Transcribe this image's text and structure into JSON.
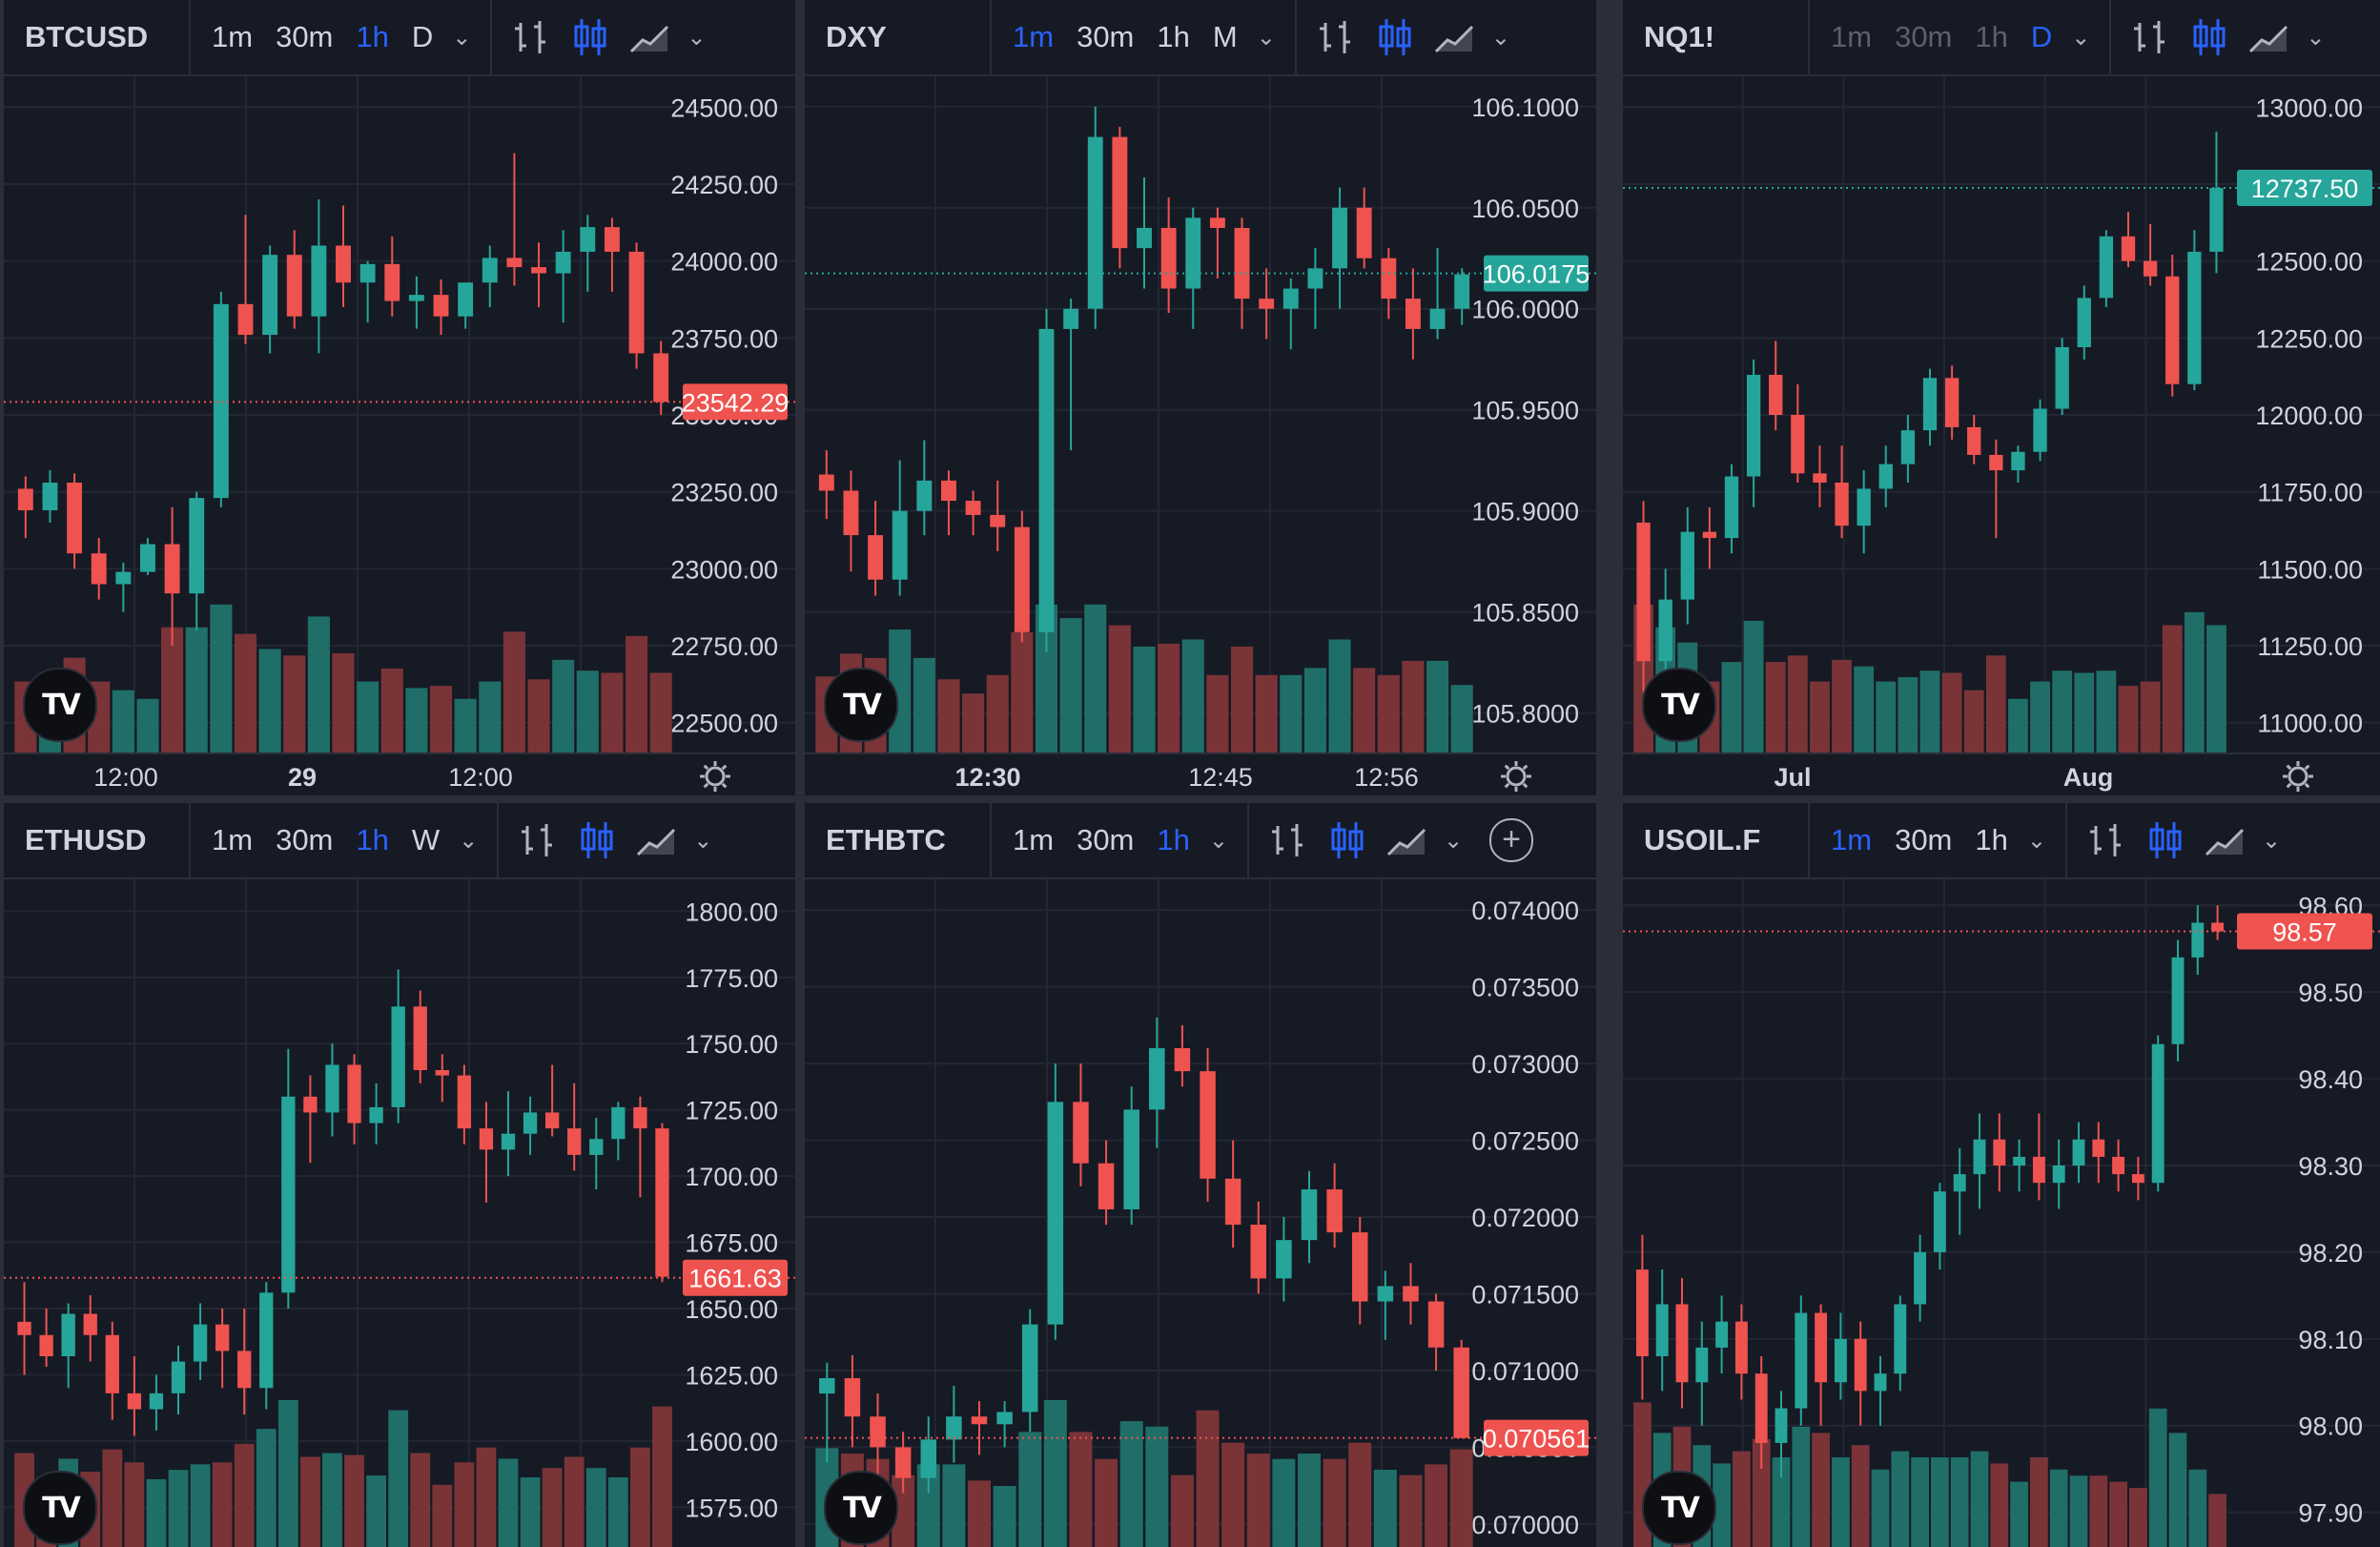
{
  "colors": {
    "up": "#26a69a",
    "down": "#ef5350",
    "upVol": "#1f6f68",
    "downVol": "#7a3437",
    "grid": "#232733",
    "text": "#d1d4dc",
    "accent": "#2962ff",
    "bg": "#161a25"
  },
  "panels": [
    {
      "symbol": "BTCUSD",
      "timeframes": [
        {
          "label": "1m",
          "state": "normal"
        },
        {
          "label": "30m",
          "state": "normal"
        },
        {
          "label": "1h",
          "state": "active"
        },
        {
          "label": "D",
          "state": "normal"
        }
      ],
      "price_labels": [
        "24500.00",
        "24250.00",
        "24000.00",
        "23750.00",
        "23500.00",
        "23250.00",
        "23000.00",
        "22750.00",
        "22500.00"
      ],
      "time_labels": [
        "12:00",
        "29",
        "12:00"
      ],
      "last_price": "23542.29",
      "last_dir": "down"
    },
    {
      "symbol": "DXY",
      "timeframes": [
        {
          "label": "1m",
          "state": "active"
        },
        {
          "label": "30m",
          "state": "normal"
        },
        {
          "label": "1h",
          "state": "normal"
        },
        {
          "label": "M",
          "state": "normal"
        }
      ],
      "price_labels": [
        "106.1000",
        "106.0500",
        "106.0000",
        "105.9500",
        "105.9000",
        "105.8500",
        "105.8000"
      ],
      "time_labels": [
        "12:30",
        "12:45",
        "12:56"
      ],
      "last_price": "106.0175",
      "last_dir": "up"
    },
    {
      "symbol": "NQ1!",
      "timeframes": [
        {
          "label": "1m",
          "state": "dim"
        },
        {
          "label": "30m",
          "state": "dim"
        },
        {
          "label": "1h",
          "state": "dim"
        },
        {
          "label": "D",
          "state": "active"
        }
      ],
      "price_labels": [
        "13000.00",
        "12750.00",
        "12500.00",
        "12250.00",
        "12000.00",
        "11750.00",
        "11500.00",
        "11250.00",
        "11000.00"
      ],
      "time_labels": [
        "Jul",
        "Aug"
      ],
      "last_price": "12737.50",
      "last_dir": "up"
    },
    {
      "symbol": "ETHUSD",
      "timeframes": [
        {
          "label": "1m",
          "state": "normal"
        },
        {
          "label": "30m",
          "state": "normal"
        },
        {
          "label": "1h",
          "state": "active"
        },
        {
          "label": "W",
          "state": "normal"
        }
      ],
      "price_labels": [
        "1800.00",
        "1775.00",
        "1750.00",
        "1725.00",
        "1700.00",
        "1675.00",
        "1650.00",
        "1625.00",
        "1600.00",
        "1575.00"
      ],
      "time_labels": [],
      "last_price": "1661.63",
      "last_dir": "down"
    },
    {
      "symbol": "ETHBTC",
      "timeframes": [
        {
          "label": "1m",
          "state": "normal"
        },
        {
          "label": "30m",
          "state": "normal"
        },
        {
          "label": "1h",
          "state": "active"
        }
      ],
      "price_labels": [
        "0.074000",
        "0.073500",
        "0.073000",
        "0.072500",
        "0.072000",
        "0.071500",
        "0.071000",
        "0.070500",
        "0.070000"
      ],
      "time_labels": [],
      "last_price": "0.070561",
      "last_dir": "down"
    },
    {
      "symbol": "USOIL.F",
      "timeframes": [
        {
          "label": "1m",
          "state": "active"
        },
        {
          "label": "30m",
          "state": "normal"
        },
        {
          "label": "1h",
          "state": "normal"
        }
      ],
      "price_labels": [
        "98.60",
        "98.50",
        "98.40",
        "98.30",
        "98.20",
        "98.10",
        "98.00",
        "97.90"
      ],
      "time_labels": [],
      "last_price": "98.57",
      "last_dir": "down"
    }
  ],
  "series": {
    "BTCUSD": [
      [
        23260,
        23300,
        23100,
        23190
      ],
      [
        23190,
        23320,
        23150,
        23280
      ],
      [
        23280,
        23310,
        23000,
        23050
      ],
      [
        23050,
        23100,
        22900,
        22950
      ],
      [
        22950,
        23020,
        22860,
        22990
      ],
      [
        22990,
        23100,
        22980,
        23080
      ],
      [
        23080,
        23200,
        22750,
        22920
      ],
      [
        22920,
        23250,
        22800,
        23230
      ],
      [
        23230,
        23900,
        23200,
        23860
      ],
      [
        23860,
        24150,
        23730,
        23760
      ],
      [
        23760,
        24050,
        23700,
        24020
      ],
      [
        24020,
        24100,
        23780,
        23820
      ],
      [
        23820,
        24200,
        23700,
        24050
      ],
      [
        24050,
        24180,
        23850,
        23930
      ],
      [
        23930,
        24000,
        23800,
        23990
      ],
      [
        23990,
        24080,
        23820,
        23870
      ],
      [
        23870,
        23950,
        23780,
        23890
      ],
      [
        23890,
        23940,
        23760,
        23820
      ],
      [
        23820,
        23900,
        23780,
        23930
      ],
      [
        23930,
        24050,
        23850,
        24010
      ],
      [
        24010,
        24350,
        23920,
        23980
      ],
      [
        23980,
        24060,
        23850,
        23960
      ],
      [
        23960,
        24100,
        23800,
        24030
      ],
      [
        24030,
        24150,
        23900,
        24110
      ],
      [
        24110,
        24140,
        23900,
        24030
      ],
      [
        24030,
        24060,
        23650,
        23700
      ],
      [
        23700,
        23740,
        23500,
        23542
      ]
    ],
    "DXY": [
      [
        105.918,
        105.93,
        105.896,
        105.91
      ],
      [
        105.91,
        105.92,
        105.87,
        105.888
      ],
      [
        105.888,
        105.905,
        105.858,
        105.866
      ],
      [
        105.866,
        105.925,
        105.858,
        105.9
      ],
      [
        105.9,
        105.935,
        105.888,
        105.915
      ],
      [
        105.915,
        105.92,
        105.888,
        105.905
      ],
      [
        105.905,
        105.91,
        105.888,
        105.898
      ],
      [
        105.898,
        105.915,
        105.88,
        105.892
      ],
      [
        105.892,
        105.9,
        105.835,
        105.84
      ],
      [
        105.84,
        106.0,
        105.83,
        105.99
      ],
      [
        105.99,
        106.005,
        105.93,
        106.0
      ],
      [
        106.0,
        106.1,
        105.99,
        106.085
      ],
      [
        106.085,
        106.09,
        106.02,
        106.03
      ],
      [
        106.03,
        106.065,
        106.01,
        106.04
      ],
      [
        106.04,
        106.055,
        105.998,
        106.01
      ],
      [
        106.01,
        106.05,
        105.99,
        106.045
      ],
      [
        106.045,
        106.05,
        106.015,
        106.04
      ],
      [
        106.04,
        106.045,
        105.99,
        106.005
      ],
      [
        106.005,
        106.02,
        105.985,
        106.0
      ],
      [
        106.0,
        106.015,
        105.98,
        106.01
      ],
      [
        106.01,
        106.03,
        105.99,
        106.02
      ],
      [
        106.02,
        106.06,
        106.0,
        106.05
      ],
      [
        106.05,
        106.06,
        106.02,
        106.025
      ],
      [
        106.025,
        106.03,
        105.995,
        106.005
      ],
      [
        106.005,
        106.02,
        105.975,
        105.99
      ],
      [
        105.99,
        106.03,
        105.985,
        106.0
      ],
      [
        106.0,
        106.02,
        105.992,
        106.017
      ]
    ],
    "NQ1!": [
      [
        11650,
        11720,
        11100,
        11200
      ],
      [
        11200,
        11500,
        11050,
        11400
      ],
      [
        11400,
        11700,
        11320,
        11620
      ],
      [
        11620,
        11700,
        11500,
        11600
      ],
      [
        11600,
        11840,
        11550,
        11800
      ],
      [
        11800,
        12180,
        11700,
        12130
      ],
      [
        12130,
        12240,
        11950,
        12000
      ],
      [
        12000,
        12100,
        11780,
        11810
      ],
      [
        11810,
        11900,
        11700,
        11780
      ],
      [
        11780,
        11900,
        11600,
        11640
      ],
      [
        11640,
        11820,
        11550,
        11760
      ],
      [
        11760,
        11900,
        11700,
        11840
      ],
      [
        11840,
        12000,
        11780,
        11950
      ],
      [
        11950,
        12150,
        11900,
        12120
      ],
      [
        12120,
        12160,
        11920,
        11960
      ],
      [
        11960,
        12000,
        11840,
        11870
      ],
      [
        11870,
        11920,
        11600,
        11820
      ],
      [
        11820,
        11900,
        11780,
        11880
      ],
      [
        11880,
        12050,
        11850,
        12020
      ],
      [
        12020,
        12250,
        12000,
        12220
      ],
      [
        12220,
        12420,
        12180,
        12380
      ],
      [
        12380,
        12600,
        12350,
        12580
      ],
      [
        12580,
        12660,
        12480,
        12500
      ],
      [
        12500,
        12620,
        12420,
        12450
      ],
      [
        12450,
        12520,
        12060,
        12100
      ],
      [
        12100,
        12600,
        12080,
        12530
      ],
      [
        12530,
        12920,
        12460,
        12737
      ]
    ],
    "ETHUSD": [
      [
        1645,
        1660,
        1625,
        1640
      ],
      [
        1640,
        1650,
        1628,
        1632
      ],
      [
        1632,
        1652,
        1620,
        1648
      ],
      [
        1648,
        1655,
        1630,
        1640
      ],
      [
        1640,
        1645,
        1608,
        1618
      ],
      [
        1618,
        1632,
        1602,
        1612
      ],
      [
        1612,
        1625,
        1604,
        1618
      ],
      [
        1618,
        1636,
        1610,
        1630
      ],
      [
        1630,
        1652,
        1623,
        1644
      ],
      [
        1644,
        1650,
        1620,
        1634
      ],
      [
        1634,
        1650,
        1610,
        1620
      ],
      [
        1620,
        1660,
        1612,
        1656
      ],
      [
        1656,
        1748,
        1650,
        1730
      ],
      [
        1730,
        1738,
        1705,
        1724
      ],
      [
        1724,
        1750,
        1715,
        1742
      ],
      [
        1742,
        1746,
        1712,
        1720
      ],
      [
        1720,
        1735,
        1712,
        1726
      ],
      [
        1726,
        1778,
        1720,
        1764
      ],
      [
        1764,
        1770,
        1735,
        1740
      ],
      [
        1740,
        1746,
        1728,
        1738
      ],
      [
        1738,
        1742,
        1712,
        1718
      ],
      [
        1718,
        1728,
        1690,
        1710
      ],
      [
        1710,
        1732,
        1700,
        1716
      ],
      [
        1716,
        1730,
        1708,
        1724
      ],
      [
        1724,
        1742,
        1715,
        1718
      ],
      [
        1718,
        1735,
        1702,
        1708
      ],
      [
        1708,
        1722,
        1695,
        1714
      ],
      [
        1714,
        1728,
        1706,
        1726
      ],
      [
        1726,
        1730,
        1692,
        1718
      ],
      [
        1718,
        1720,
        1660,
        1662
      ]
    ],
    "ETHBTC": [
      [
        0.07085,
        0.07105,
        0.0704,
        0.07095
      ],
      [
        0.07095,
        0.0711,
        0.0705,
        0.0707
      ],
      [
        0.0707,
        0.07085,
        0.0703,
        0.0705
      ],
      [
        0.0705,
        0.0706,
        0.0702,
        0.0703
      ],
      [
        0.0703,
        0.0707,
        0.0702,
        0.07055
      ],
      [
        0.07055,
        0.0709,
        0.0704,
        0.0707
      ],
      [
        0.0707,
        0.0708,
        0.07045,
        0.07065
      ],
      [
        0.07065,
        0.0708,
        0.0705,
        0.07073
      ],
      [
        0.07073,
        0.0714,
        0.0706,
        0.0713
      ],
      [
        0.0713,
        0.073,
        0.0712,
        0.07275
      ],
      [
        0.07275,
        0.073,
        0.0722,
        0.07235
      ],
      [
        0.07235,
        0.0725,
        0.07195,
        0.07205
      ],
      [
        0.07205,
        0.07285,
        0.07195,
        0.0727
      ],
      [
        0.0727,
        0.0733,
        0.07245,
        0.0731
      ],
      [
        0.0731,
        0.07325,
        0.07285,
        0.07295
      ],
      [
        0.07295,
        0.0731,
        0.0721,
        0.07225
      ],
      [
        0.07225,
        0.0725,
        0.0718,
        0.07195
      ],
      [
        0.07195,
        0.0721,
        0.0715,
        0.0716
      ],
      [
        0.0716,
        0.072,
        0.07145,
        0.07185
      ],
      [
        0.07185,
        0.0723,
        0.0717,
        0.07218
      ],
      [
        0.07218,
        0.07235,
        0.0718,
        0.0719
      ],
      [
        0.0719,
        0.072,
        0.0713,
        0.07145
      ],
      [
        0.07145,
        0.07165,
        0.0712,
        0.07155
      ],
      [
        0.07155,
        0.0717,
        0.0713,
        0.07145
      ],
      [
        0.07145,
        0.0715,
        0.071,
        0.07115
      ],
      [
        0.07115,
        0.0712,
        0.07056,
        0.07056
      ]
    ],
    "USOIL.F": [
      [
        98.18,
        98.22,
        98.03,
        98.08
      ],
      [
        98.08,
        98.18,
        98.04,
        98.14
      ],
      [
        98.14,
        98.17,
        98.02,
        98.05
      ],
      [
        98.05,
        98.12,
        98.0,
        98.09
      ],
      [
        98.09,
        98.15,
        98.06,
        98.12
      ],
      [
        98.12,
        98.14,
        98.03,
        98.06
      ],
      [
        98.06,
        98.08,
        97.95,
        97.98
      ],
      [
        97.98,
        98.04,
        97.94,
        98.02
      ],
      [
        98.02,
        98.15,
        98.0,
        98.13
      ],
      [
        98.13,
        98.14,
        98.0,
        98.05
      ],
      [
        98.05,
        98.13,
        98.03,
        98.1
      ],
      [
        98.1,
        98.12,
        98.0,
        98.04
      ],
      [
        98.04,
        98.08,
        98.0,
        98.06
      ],
      [
        98.06,
        98.15,
        98.04,
        98.14
      ],
      [
        98.14,
        98.22,
        98.12,
        98.2
      ],
      [
        98.2,
        98.28,
        98.18,
        98.27
      ],
      [
        98.27,
        98.32,
        98.22,
        98.29
      ],
      [
        98.29,
        98.36,
        98.25,
        98.33
      ],
      [
        98.33,
        98.36,
        98.27,
        98.3
      ],
      [
        98.3,
        98.33,
        98.27,
        98.31
      ],
      [
        98.31,
        98.36,
        98.26,
        98.28
      ],
      [
        98.28,
        98.33,
        98.25,
        98.3
      ],
      [
        98.3,
        98.35,
        98.28,
        98.33
      ],
      [
        98.33,
        98.35,
        98.28,
        98.31
      ],
      [
        98.31,
        98.33,
        98.27,
        98.29
      ],
      [
        98.29,
        98.31,
        98.26,
        98.28
      ],
      [
        98.28,
        98.45,
        98.27,
        98.44
      ],
      [
        98.44,
        98.56,
        98.42,
        98.54
      ],
      [
        98.54,
        98.6,
        98.52,
        98.58
      ],
      [
        98.58,
        98.6,
        98.56,
        98.57
      ]
    ]
  }
}
